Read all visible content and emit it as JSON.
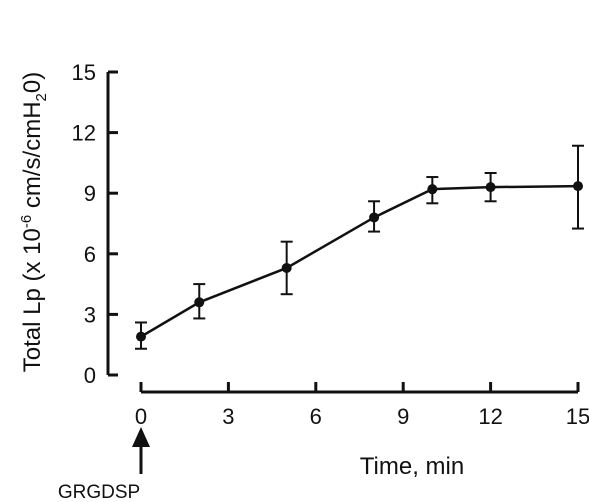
{
  "chart_data": {
    "type": "line",
    "title": "",
    "xlabel": "Time, min",
    "ylabel_main": "Total Lp (x 10",
    "ylabel_exp": "-6",
    "ylabel_mid": " cm/s/cmH",
    "ylabel_sub": "2",
    "ylabel_end": "0)",
    "xlim": [
      0,
      15
    ],
    "ylim": [
      0,
      15
    ],
    "xticks": [
      0,
      3,
      6,
      9,
      12,
      15
    ],
    "yticks": [
      0,
      3,
      6,
      9,
      12,
      15
    ],
    "grid": false,
    "legend": "none",
    "series": [
      {
        "x": [
          0,
          2,
          5,
          8,
          10,
          12,
          15
        ],
        "y": [
          1.9,
          3.6,
          5.3,
          7.8,
          9.2,
          9.3,
          9.35
        ],
        "err_upper": [
          0.7,
          0.9,
          1.3,
          0.8,
          0.6,
          0.7,
          2.0
        ],
        "err_lower": [
          0.6,
          0.8,
          1.3,
          0.7,
          0.7,
          0.7,
          2.1
        ]
      }
    ],
    "annotation": {
      "label": "GRGDSP",
      "x": 0,
      "arrow": "up"
    }
  }
}
